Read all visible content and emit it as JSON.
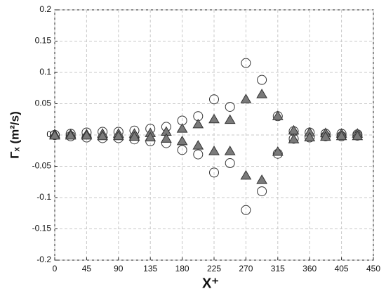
{
  "chart_data": {
    "type": "scatter",
    "xlabel": "X⁺",
    "ylabel": "Γₓ (m²/s)",
    "x": [
      0,
      22.5,
      45,
      67.5,
      90,
      112.5,
      135,
      157.5,
      180,
      202.5,
      225,
      247.5,
      270,
      292.5,
      315,
      337.5,
      360,
      382.5,
      405,
      427.5
    ],
    "series": [
      {
        "marker": "circle",
        "color": "#ffffff",
        "values": [
          0,
          0.002,
          0.004,
          0.005,
          0.005,
          0.007,
          0.01,
          0.013,
          0.023,
          0.03,
          0.057,
          0.045,
          0.115,
          0.088,
          0.03,
          0.006,
          0.004,
          0.002,
          0.002,
          0.001
        ]
      },
      {
        "marker": "circle",
        "color": "#ffffff",
        "values": [
          0,
          -0.002,
          -0.004,
          -0.005,
          -0.005,
          -0.007,
          -0.01,
          -0.013,
          -0.024,
          -0.031,
          -0.06,
          -0.045,
          -0.12,
          -0.09,
          -0.03,
          -0.006,
          -0.004,
          -0.002,
          -0.002,
          -0.001
        ]
      },
      {
        "marker": "triangle",
        "color": "#7a7a7a",
        "values": [
          0.001,
          0.001,
          0.001,
          0.002,
          0.002,
          0.002,
          0.003,
          0.005,
          0.01,
          0.017,
          0.025,
          0.024,
          0.057,
          0.065,
          0.03,
          0.007,
          0.004,
          0.003,
          0.002,
          0.002
        ]
      },
      {
        "marker": "triangle",
        "color": "#7a7a7a",
        "values": [
          -0.001,
          -0.001,
          -0.001,
          -0.002,
          -0.002,
          -0.003,
          -0.004,
          -0.006,
          -0.01,
          -0.017,
          -0.026,
          -0.026,
          -0.065,
          -0.072,
          -0.027,
          -0.007,
          -0.004,
          -0.003,
          -0.002,
          -0.002
        ]
      }
    ],
    "xlim": [
      0,
      450
    ],
    "xticks": [
      0,
      45,
      90,
      135,
      180,
      225,
      270,
      315,
      360,
      405,
      450
    ],
    "ylim": [
      -0.2,
      0.2
    ],
    "yticks": [
      -0.2,
      -0.15,
      -0.1,
      -0.05,
      0,
      0.05,
      0.1,
      0.15,
      0.2
    ],
    "grid": true
  }
}
